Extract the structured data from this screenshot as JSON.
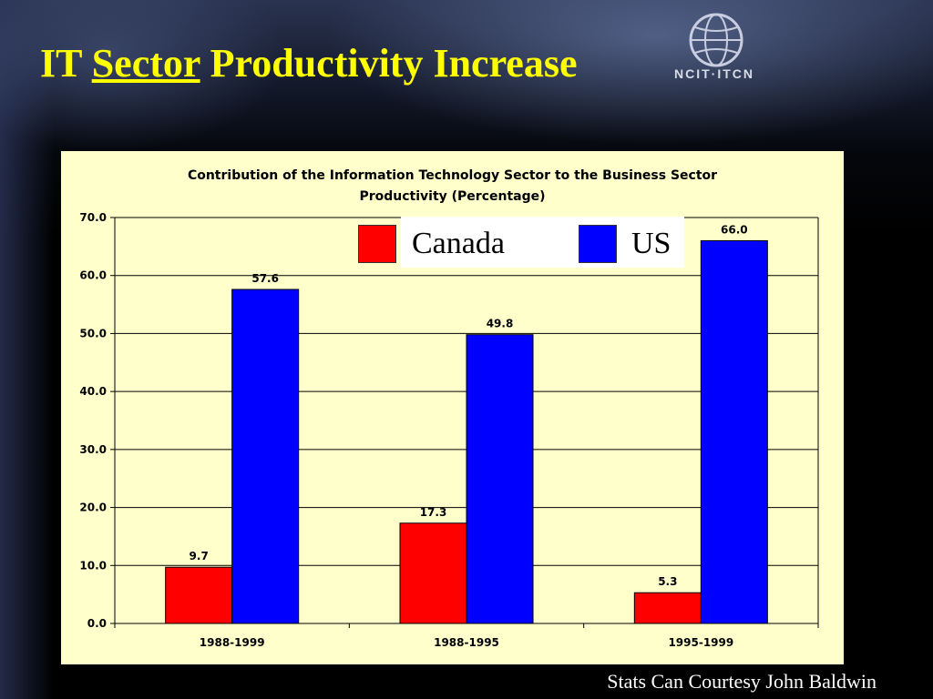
{
  "slide": {
    "title_pre": "IT ",
    "title_underlined": "Sector",
    "title_post": " Productivity Increase",
    "logo_text": "NCIT·ITCN",
    "footer": "Stats Can Courtesy John Baldwin",
    "colors": {
      "title": "#ffff00",
      "background": "#000000",
      "chart_panel": "#ffffcc"
    }
  },
  "chart_data": {
    "type": "bar",
    "title_lines": [
      "Contribution of the Information Technology Sector to the Business Sector",
      "Productivity (Percentage)"
    ],
    "categories": [
      "1988-1999",
      "1988-1995",
      "1995-1999"
    ],
    "series": [
      {
        "name": "Canada",
        "color": "#ff0000",
        "values": [
          9.7,
          17.3,
          5.3
        ],
        "labels": [
          "9.7",
          "17.3",
          "5.3"
        ]
      },
      {
        "name": "US",
        "color": "#0000ff",
        "values": [
          57.6,
          49.8,
          66.0
        ],
        "labels": [
          "57.6",
          "49.8",
          "66.0"
        ]
      }
    ],
    "yticks": [
      "0.0",
      "10.0",
      "20.0",
      "30.0",
      "40.0",
      "50.0",
      "60.0",
      "70.0"
    ],
    "ylim": [
      0,
      70
    ],
    "grid": true,
    "legend_position": "top-center"
  }
}
